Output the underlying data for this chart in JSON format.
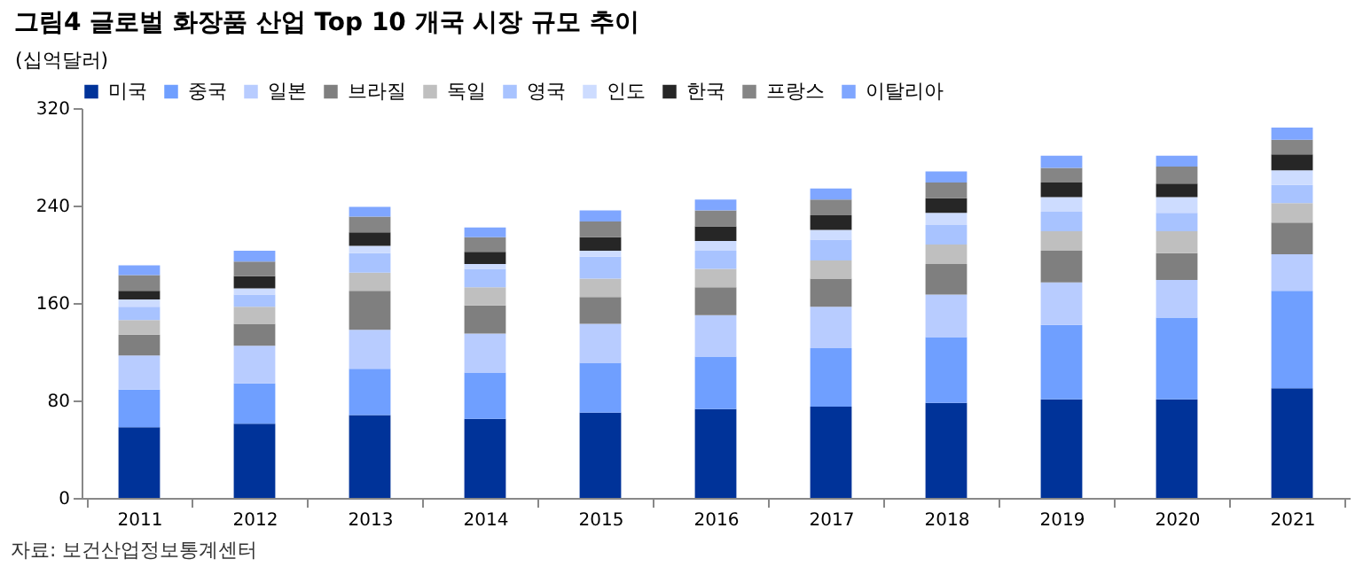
{
  "chart_data": {
    "type": "bar",
    "title": "그림4 글로벌 화장품 산업 Top 10 개국 시장 규모 추이",
    "ylabel": "(십억달러)",
    "stacked": true,
    "legend": "top",
    "grid": false,
    "categories": [
      "2011",
      "2012",
      "2013",
      "2014",
      "2015",
      "2016",
      "2017",
      "2018",
      "2019",
      "2020",
      "2021"
    ],
    "ylim": [
      0,
      320
    ],
    "yticks": [
      0,
      80,
      160,
      240,
      320
    ],
    "series": [
      {
        "name": "미국",
        "color": "#003399",
        "values": [
          58,
          61,
          68,
          65,
          70,
          73,
          75,
          78,
          81,
          81,
          90
        ]
      },
      {
        "name": "중국",
        "color": "#6f9fff",
        "values": [
          31,
          33,
          38,
          38,
          41,
          43,
          48,
          54,
          61,
          67,
          80
        ]
      },
      {
        "name": "일본",
        "color": "#b8ccff",
        "values": [
          28,
          31,
          32,
          32,
          32,
          34,
          34,
          35,
          35,
          31,
          30
        ]
      },
      {
        "name": "브라질",
        "color": "#7f7f7f",
        "values": [
          17,
          18,
          32,
          23,
          22,
          23,
          23,
          25,
          26,
          22,
          26
        ]
      },
      {
        "name": "독일",
        "color": "#bfbfbf",
        "values": [
          12,
          14,
          15,
          15,
          15,
          15,
          15,
          16,
          16,
          18,
          16
        ]
      },
      {
        "name": "영국",
        "color": "#a8c3ff",
        "values": [
          11,
          10,
          16,
          15,
          18,
          15,
          17,
          16,
          16,
          15,
          15
        ]
      },
      {
        "name": "인도",
        "color": "#cddcff",
        "values": [
          6,
          5,
          6,
          4,
          5,
          8,
          8,
          10,
          12,
          13,
          12
        ]
      },
      {
        "name": "한국",
        "color": "#262626",
        "values": [
          7,
          10,
          11,
          10,
          11,
          12,
          12,
          12,
          12,
          11,
          13
        ]
      },
      {
        "name": "프랑스",
        "color": "#858585",
        "values": [
          13,
          12,
          13,
          12,
          13,
          13,
          13,
          13,
          12,
          14,
          12
        ]
      },
      {
        "name": "이탈리아",
        "color": "#7fa6ff",
        "values": [
          8,
          9,
          8,
          8,
          9,
          9,
          9,
          9,
          10,
          9,
          10
        ]
      }
    ],
    "annotations": [
      "자료: 보건산업정보통계센터"
    ]
  }
}
